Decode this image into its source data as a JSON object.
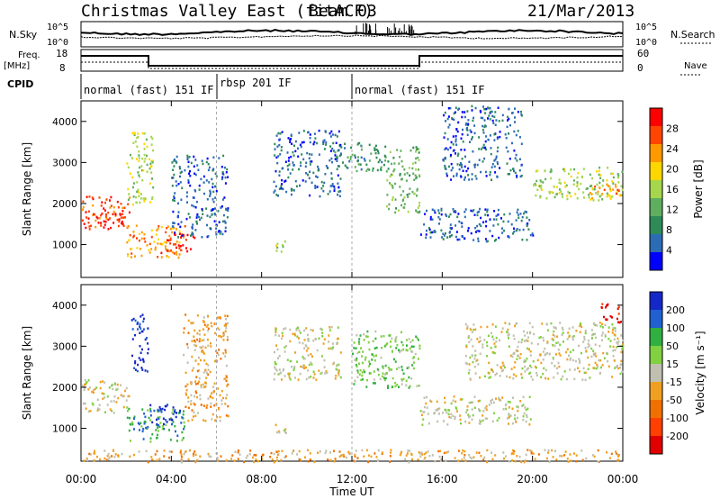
{
  "header": {
    "title": "Christmas Valley East (fitACF)",
    "beam": "Beam 03",
    "date": "21/Mar/2013"
  },
  "nsky_panel": {
    "left_label": "N.Sky",
    "left_ticks": [
      "10^5",
      "10^0"
    ],
    "right_label": "N.Search",
    "right_ticks": [
      "10^5",
      "10^0"
    ]
  },
  "freq_panel": {
    "left_label_line1": "Freq.",
    "left_label_line2": "[MHz]",
    "left_ticks": [
      "18",
      "8"
    ],
    "right_label": "Nave",
    "right_ticks": [
      "60",
      "0"
    ]
  },
  "cpid": {
    "label": "CPID",
    "segments": [
      {
        "label": "normal (fast) 151 IF",
        "start_hour": 0,
        "end_hour": 6
      },
      {
        "label": "rbsp 201 IF",
        "start_hour": 6,
        "end_hour": 12
      },
      {
        "label": "normal (fast) 151 IF",
        "start_hour": 12,
        "end_hour": 24
      }
    ]
  },
  "time_axis": {
    "xlabel": "Time UT",
    "ticks": [
      "00:00",
      "04:00",
      "08:00",
      "12:00",
      "16:00",
      "20:00",
      "00:00"
    ]
  },
  "colors": {
    "power_scale": [
      "#0000ff",
      "#2c6cb4",
      "#2e8b57",
      "#5fae5f",
      "#a5d64c",
      "#ffd700",
      "#ff9900",
      "#ff4500",
      "#ff0000"
    ],
    "velocity_scale": [
      "#1428c8",
      "#2060d0",
      "#30b040",
      "#80d040",
      "#c0c0b0",
      "#f0a020",
      "#f07000",
      "#ff4000",
      "#e00000"
    ]
  },
  "chart_data": [
    {
      "type": "heatmap",
      "name": "power",
      "ylabel": "Slant Range [km]",
      "ylim": [
        200,
        4500
      ],
      "yticks": [
        1000,
        2000,
        3000,
        4000
      ],
      "xlim": [
        0,
        24
      ],
      "colorbar_label": "Power [dB]",
      "colorbar_ticks": [
        "4",
        "8",
        "12",
        "16",
        "20",
        "24",
        "28"
      ],
      "regions": [
        {
          "t0": 0.0,
          "t1": 2.2,
          "r0": 1400,
          "r1": 2200,
          "level": 7
        },
        {
          "t0": 0.5,
          "t1": 2.0,
          "r0": 1500,
          "r1": 1800,
          "level": 8
        },
        {
          "t0": 2.0,
          "t1": 4.6,
          "r0": 700,
          "r1": 1500,
          "level": 6
        },
        {
          "t0": 3.5,
          "t1": 5.0,
          "r0": 800,
          "r1": 1300,
          "level": 8
        },
        {
          "t0": 2.0,
          "t1": 3.2,
          "r0": 2000,
          "r1": 3800,
          "level": 4
        },
        {
          "t0": 4.0,
          "t1": 6.5,
          "r0": 1200,
          "r1": 3200,
          "level": 1
        },
        {
          "t0": 8.5,
          "t1": 9.2,
          "r0": 850,
          "r1": 1150,
          "level": 4
        },
        {
          "t0": 8.5,
          "t1": 11.5,
          "r0": 2200,
          "r1": 3800,
          "level": 1
        },
        {
          "t0": 11.0,
          "t1": 13.5,
          "r0": 2800,
          "r1": 3500,
          "level": 2
        },
        {
          "t0": 13.5,
          "t1": 15.0,
          "r0": 1800,
          "r1": 3400,
          "level": 3
        },
        {
          "t0": 15.0,
          "t1": 20.0,
          "r0": 1100,
          "r1": 1900,
          "level": 1
        },
        {
          "t0": 16.0,
          "t1": 19.5,
          "r0": 2600,
          "r1": 4400,
          "level": 1
        },
        {
          "t0": 20.0,
          "t1": 24.0,
          "r0": 2100,
          "r1": 2900,
          "level": 4
        },
        {
          "t0": 22.5,
          "t1": 24.0,
          "r0": 2100,
          "r1": 2500,
          "level": 6
        }
      ]
    },
    {
      "type": "heatmap",
      "name": "velocity",
      "ylabel": "Slant Range [km]",
      "ylim": [
        200,
        4500
      ],
      "yticks": [
        1000,
        2000,
        3000,
        4000
      ],
      "xlim": [
        0,
        24
      ],
      "colorbar_label": "Velocity [m s⁻¹]",
      "colorbar_ticks": [
        "-200",
        "-100",
        "-50",
        "-15",
        "15",
        "50",
        "100",
        "200"
      ],
      "regions": [
        {
          "t0": 0.0,
          "t1": 2.2,
          "r0": 1400,
          "r1": 2200,
          "level": 4
        },
        {
          "t0": 2.0,
          "t1": 4.6,
          "r0": 700,
          "r1": 1500,
          "level": 2
        },
        {
          "t0": 3.0,
          "t1": 4.5,
          "r0": 1100,
          "r1": 1600,
          "level": 0
        },
        {
          "t0": 2.2,
          "t1": 3.0,
          "r0": 2400,
          "r1": 3800,
          "level": 0
        },
        {
          "t0": 4.5,
          "t1": 6.5,
          "r0": 1200,
          "r1": 3800,
          "level": 5
        },
        {
          "t0": 8.5,
          "t1": 9.2,
          "r0": 850,
          "r1": 1150,
          "level": 4
        },
        {
          "t0": 8.5,
          "t1": 11.5,
          "r0": 2200,
          "r1": 3500,
          "level": 4
        },
        {
          "t0": 12.0,
          "t1": 15.0,
          "r0": 2000,
          "r1": 3400,
          "level": 3
        },
        {
          "t0": 15.0,
          "t1": 20.0,
          "r0": 1100,
          "r1": 1800,
          "level": 4
        },
        {
          "t0": 17.0,
          "t1": 24.0,
          "r0": 2200,
          "r1": 3600,
          "level": 4
        },
        {
          "t0": 23.0,
          "t1": 24.0,
          "r0": 3600,
          "r1": 4100,
          "level": 8
        },
        {
          "t0": 0.0,
          "t1": 24.0,
          "r0": 200,
          "r1": 500,
          "level": 5
        }
      ]
    }
  ]
}
